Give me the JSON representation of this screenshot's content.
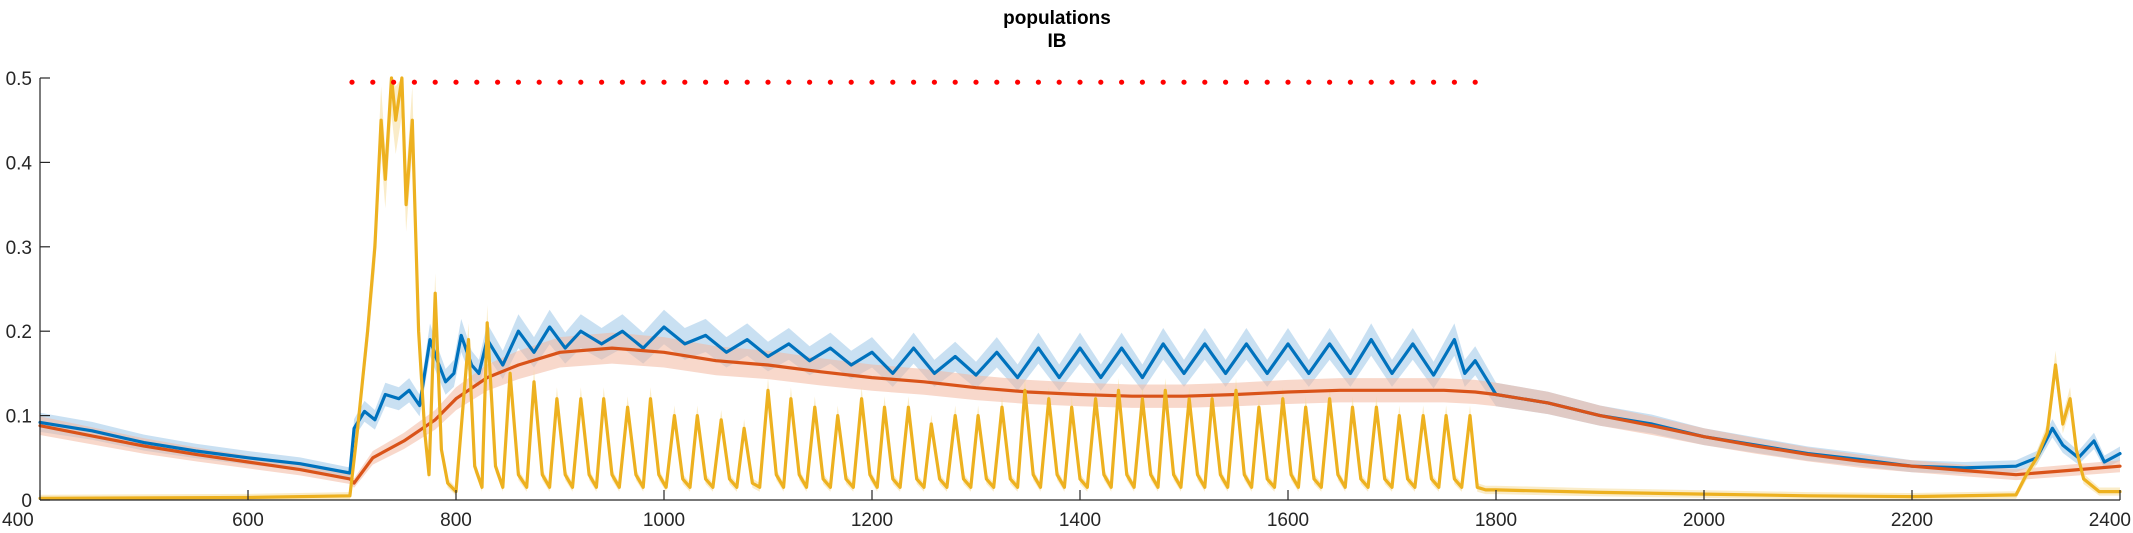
{
  "chart_data": {
    "type": "line",
    "title": [
      "populations",
      "IB"
    ],
    "xlabel": "",
    "ylabel": "",
    "xlim": [
      400,
      2400
    ],
    "ylim": [
      0,
      0.5
    ],
    "xticks": [
      400,
      600,
      800,
      1000,
      1200,
      1400,
      1600,
      1800,
      2000,
      2200,
      2400
    ],
    "yticks": [
      0,
      0.1,
      0.2,
      0.3,
      0.4,
      0.5
    ],
    "xtick_labels": [
      "400",
      "600",
      "800",
      "1000",
      "1200",
      "1400",
      "1600",
      "1800",
      "2000",
      "2200",
      "2400"
    ],
    "ytick_labels": [
      "0",
      "0.1",
      "0.2",
      "0.3",
      "0.4",
      "0.5"
    ],
    "grid": false,
    "stimulus_markers": {
      "color": "#ff0000",
      "y": 0.495,
      "x_start": 700,
      "x_end": 1780,
      "spacing": 20
    },
    "series": [
      {
        "color": "#0072BD",
        "shade": "#9dc6e8",
        "points": [
          [
            400,
            0.092
          ],
          [
            450,
            0.082
          ],
          [
            500,
            0.068
          ],
          [
            550,
            0.058
          ],
          [
            600,
            0.05
          ],
          [
            650,
            0.043
          ],
          [
            698,
            0.032
          ],
          [
            702,
            0.085
          ],
          [
            712,
            0.105
          ],
          [
            722,
            0.095
          ],
          [
            732,
            0.125
          ],
          [
            745,
            0.12
          ],
          [
            755,
            0.13
          ],
          [
            765,
            0.112
          ],
          [
            775,
            0.19
          ],
          [
            782,
            0.165
          ],
          [
            790,
            0.14
          ],
          [
            798,
            0.15
          ],
          [
            805,
            0.195
          ],
          [
            815,
            0.16
          ],
          [
            822,
            0.15
          ],
          [
            830,
            0.19
          ],
          [
            845,
            0.16
          ],
          [
            860,
            0.2
          ],
          [
            875,
            0.175
          ],
          [
            890,
            0.205
          ],
          [
            905,
            0.18
          ],
          [
            920,
            0.2
          ],
          [
            940,
            0.185
          ],
          [
            960,
            0.2
          ],
          [
            980,
            0.18
          ],
          [
            1000,
            0.205
          ],
          [
            1020,
            0.185
          ],
          [
            1040,
            0.195
          ],
          [
            1060,
            0.175
          ],
          [
            1080,
            0.19
          ],
          [
            1100,
            0.17
          ],
          [
            1120,
            0.185
          ],
          [
            1140,
            0.165
          ],
          [
            1160,
            0.18
          ],
          [
            1180,
            0.16
          ],
          [
            1200,
            0.175
          ],
          [
            1220,
            0.15
          ],
          [
            1240,
            0.18
          ],
          [
            1260,
            0.15
          ],
          [
            1280,
            0.17
          ],
          [
            1300,
            0.148
          ],
          [
            1320,
            0.175
          ],
          [
            1340,
            0.145
          ],
          [
            1360,
            0.18
          ],
          [
            1380,
            0.145
          ],
          [
            1400,
            0.18
          ],
          [
            1420,
            0.145
          ],
          [
            1440,
            0.18
          ],
          [
            1460,
            0.145
          ],
          [
            1480,
            0.185
          ],
          [
            1500,
            0.15
          ],
          [
            1520,
            0.185
          ],
          [
            1540,
            0.15
          ],
          [
            1560,
            0.185
          ],
          [
            1580,
            0.15
          ],
          [
            1600,
            0.185
          ],
          [
            1620,
            0.15
          ],
          [
            1640,
            0.185
          ],
          [
            1660,
            0.15
          ],
          [
            1680,
            0.19
          ],
          [
            1700,
            0.15
          ],
          [
            1720,
            0.185
          ],
          [
            1740,
            0.148
          ],
          [
            1760,
            0.19
          ],
          [
            1770,
            0.15
          ],
          [
            1780,
            0.165
          ],
          [
            1800,
            0.125
          ],
          [
            1850,
            0.115
          ],
          [
            1900,
            0.1
          ],
          [
            1950,
            0.09
          ],
          [
            2000,
            0.075
          ],
          [
            2050,
            0.065
          ],
          [
            2100,
            0.055
          ],
          [
            2150,
            0.048
          ],
          [
            2200,
            0.04
          ],
          [
            2250,
            0.038
          ],
          [
            2300,
            0.04
          ],
          [
            2320,
            0.05
          ],
          [
            2335,
            0.085
          ],
          [
            2345,
            0.065
          ],
          [
            2360,
            0.05
          ],
          [
            2375,
            0.07
          ],
          [
            2385,
            0.045
          ],
          [
            2400,
            0.055
          ]
        ]
      },
      {
        "color": "#D95319",
        "shade": "#f2b8a0",
        "points": [
          [
            400,
            0.088
          ],
          [
            450,
            0.076
          ],
          [
            500,
            0.064
          ],
          [
            550,
            0.054
          ],
          [
            600,
            0.045
          ],
          [
            650,
            0.036
          ],
          [
            698,
            0.025
          ],
          [
            702,
            0.02
          ],
          [
            720,
            0.05
          ],
          [
            750,
            0.07
          ],
          [
            780,
            0.095
          ],
          [
            800,
            0.12
          ],
          [
            830,
            0.145
          ],
          [
            860,
            0.16
          ],
          [
            900,
            0.175
          ],
          [
            950,
            0.18
          ],
          [
            1000,
            0.175
          ],
          [
            1050,
            0.165
          ],
          [
            1100,
            0.16
          ],
          [
            1150,
            0.152
          ],
          [
            1200,
            0.145
          ],
          [
            1250,
            0.14
          ],
          [
            1300,
            0.133
          ],
          [
            1350,
            0.128
          ],
          [
            1400,
            0.125
          ],
          [
            1450,
            0.123
          ],
          [
            1500,
            0.123
          ],
          [
            1550,
            0.125
          ],
          [
            1600,
            0.128
          ],
          [
            1650,
            0.13
          ],
          [
            1700,
            0.13
          ],
          [
            1750,
            0.13
          ],
          [
            1780,
            0.128
          ],
          [
            1800,
            0.125
          ],
          [
            1850,
            0.115
          ],
          [
            1900,
            0.1
          ],
          [
            1950,
            0.088
          ],
          [
            2000,
            0.075
          ],
          [
            2050,
            0.064
          ],
          [
            2100,
            0.054
          ],
          [
            2150,
            0.046
          ],
          [
            2200,
            0.04
          ],
          [
            2250,
            0.035
          ],
          [
            2300,
            0.03
          ],
          [
            2350,
            0.035
          ],
          [
            2400,
            0.04
          ]
        ]
      },
      {
        "color": "#EDB120",
        "shade": "#f5dc9a",
        "points": [
          [
            400,
            0.002
          ],
          [
            600,
            0.003
          ],
          [
            698,
            0.005
          ],
          [
            705,
            0.08
          ],
          [
            715,
            0.2
          ],
          [
            722,
            0.3
          ],
          [
            728,
            0.45
          ],
          [
            732,
            0.38
          ],
          [
            738,
            0.5
          ],
          [
            742,
            0.45
          ],
          [
            748,
            0.5
          ],
          [
            752,
            0.35
          ],
          [
            758,
            0.45
          ],
          [
            764,
            0.2
          ],
          [
            770,
            0.08
          ],
          [
            774,
            0.03
          ],
          [
            780,
            0.245
          ],
          [
            786,
            0.06
          ],
          [
            792,
            0.02
          ],
          [
            800,
            0.01
          ],
          [
            812,
            0.19
          ],
          [
            818,
            0.04
          ],
          [
            825,
            0.015
          ],
          [
            830,
            0.21
          ],
          [
            838,
            0.04
          ],
          [
            845,
            0.015
          ],
          [
            852,
            0.15
          ],
          [
            860,
            0.03
          ],
          [
            868,
            0.015
          ],
          [
            875,
            0.14
          ],
          [
            883,
            0.03
          ],
          [
            890,
            0.015
          ],
          [
            897,
            0.12
          ],
          [
            905,
            0.03
          ],
          [
            912,
            0.015
          ],
          [
            920,
            0.12
          ],
          [
            928,
            0.03
          ],
          [
            935,
            0.015
          ],
          [
            942,
            0.12
          ],
          [
            950,
            0.03
          ],
          [
            957,
            0.015
          ],
          [
            965,
            0.11
          ],
          [
            973,
            0.03
          ],
          [
            980,
            0.015
          ],
          [
            987,
            0.12
          ],
          [
            995,
            0.03
          ],
          [
            1002,
            0.015
          ],
          [
            1010,
            0.1
          ],
          [
            1018,
            0.025
          ],
          [
            1025,
            0.015
          ],
          [
            1032,
            0.1
          ],
          [
            1040,
            0.025
          ],
          [
            1047,
            0.015
          ],
          [
            1055,
            0.095
          ],
          [
            1063,
            0.025
          ],
          [
            1070,
            0.015
          ],
          [
            1077,
            0.085
          ],
          [
            1085,
            0.02
          ],
          [
            1092,
            0.015
          ],
          [
            1100,
            0.13
          ],
          [
            1108,
            0.03
          ],
          [
            1115,
            0.015
          ],
          [
            1122,
            0.12
          ],
          [
            1130,
            0.03
          ],
          [
            1137,
            0.015
          ],
          [
            1145,
            0.11
          ],
          [
            1153,
            0.025
          ],
          [
            1160,
            0.015
          ],
          [
            1167,
            0.1
          ],
          [
            1175,
            0.025
          ],
          [
            1182,
            0.015
          ],
          [
            1190,
            0.12
          ],
          [
            1198,
            0.03
          ],
          [
            1205,
            0.015
          ],
          [
            1212,
            0.11
          ],
          [
            1220,
            0.025
          ],
          [
            1227,
            0.015
          ],
          [
            1235,
            0.11
          ],
          [
            1243,
            0.025
          ],
          [
            1250,
            0.015
          ],
          [
            1257,
            0.09
          ],
          [
            1265,
            0.025
          ],
          [
            1272,
            0.015
          ],
          [
            1280,
            0.1
          ],
          [
            1288,
            0.025
          ],
          [
            1295,
            0.015
          ],
          [
            1302,
            0.1
          ],
          [
            1310,
            0.025
          ],
          [
            1317,
            0.015
          ],
          [
            1325,
            0.11
          ],
          [
            1333,
            0.025
          ],
          [
            1340,
            0.015
          ],
          [
            1347,
            0.13
          ],
          [
            1355,
            0.03
          ],
          [
            1362,
            0.015
          ],
          [
            1370,
            0.12
          ],
          [
            1378,
            0.03
          ],
          [
            1385,
            0.015
          ],
          [
            1392,
            0.11
          ],
          [
            1400,
            0.025
          ],
          [
            1407,
            0.015
          ],
          [
            1415,
            0.12
          ],
          [
            1423,
            0.03
          ],
          [
            1430,
            0.015
          ],
          [
            1437,
            0.13
          ],
          [
            1445,
            0.03
          ],
          [
            1452,
            0.015
          ],
          [
            1460,
            0.12
          ],
          [
            1468,
            0.03
          ],
          [
            1475,
            0.015
          ],
          [
            1482,
            0.13
          ],
          [
            1490,
            0.03
          ],
          [
            1497,
            0.015
          ],
          [
            1505,
            0.12
          ],
          [
            1513,
            0.03
          ],
          [
            1520,
            0.015
          ],
          [
            1527,
            0.12
          ],
          [
            1535,
            0.03
          ],
          [
            1542,
            0.015
          ],
          [
            1550,
            0.13
          ],
          [
            1558,
            0.03
          ],
          [
            1565,
            0.015
          ],
          [
            1572,
            0.11
          ],
          [
            1580,
            0.025
          ],
          [
            1587,
            0.015
          ],
          [
            1595,
            0.12
          ],
          [
            1603,
            0.03
          ],
          [
            1610,
            0.015
          ],
          [
            1617,
            0.11
          ],
          [
            1625,
            0.025
          ],
          [
            1632,
            0.015
          ],
          [
            1640,
            0.12
          ],
          [
            1648,
            0.03
          ],
          [
            1655,
            0.015
          ],
          [
            1662,
            0.11
          ],
          [
            1670,
            0.025
          ],
          [
            1677,
            0.015
          ],
          [
            1685,
            0.11
          ],
          [
            1693,
            0.025
          ],
          [
            1700,
            0.015
          ],
          [
            1707,
            0.1
          ],
          [
            1715,
            0.025
          ],
          [
            1722,
            0.015
          ],
          [
            1730,
            0.1
          ],
          [
            1738,
            0.025
          ],
          [
            1745,
            0.015
          ],
          [
            1752,
            0.1
          ],
          [
            1760,
            0.025
          ],
          [
            1767,
            0.015
          ],
          [
            1775,
            0.1
          ],
          [
            1782,
            0.015
          ],
          [
            1790,
            0.012
          ],
          [
            1800,
            0.012
          ],
          [
            1900,
            0.009
          ],
          [
            2000,
            0.007
          ],
          [
            2100,
            0.005
          ],
          [
            2200,
            0.004
          ],
          [
            2300,
            0.006
          ],
          [
            2310,
            0.03
          ],
          [
            2320,
            0.05
          ],
          [
            2330,
            0.08
          ],
          [
            2338,
            0.16
          ],
          [
            2345,
            0.09
          ],
          [
            2352,
            0.12
          ],
          [
            2358,
            0.06
          ],
          [
            2365,
            0.025
          ],
          [
            2380,
            0.01
          ],
          [
            2400,
            0.01
          ]
        ]
      }
    ]
  }
}
